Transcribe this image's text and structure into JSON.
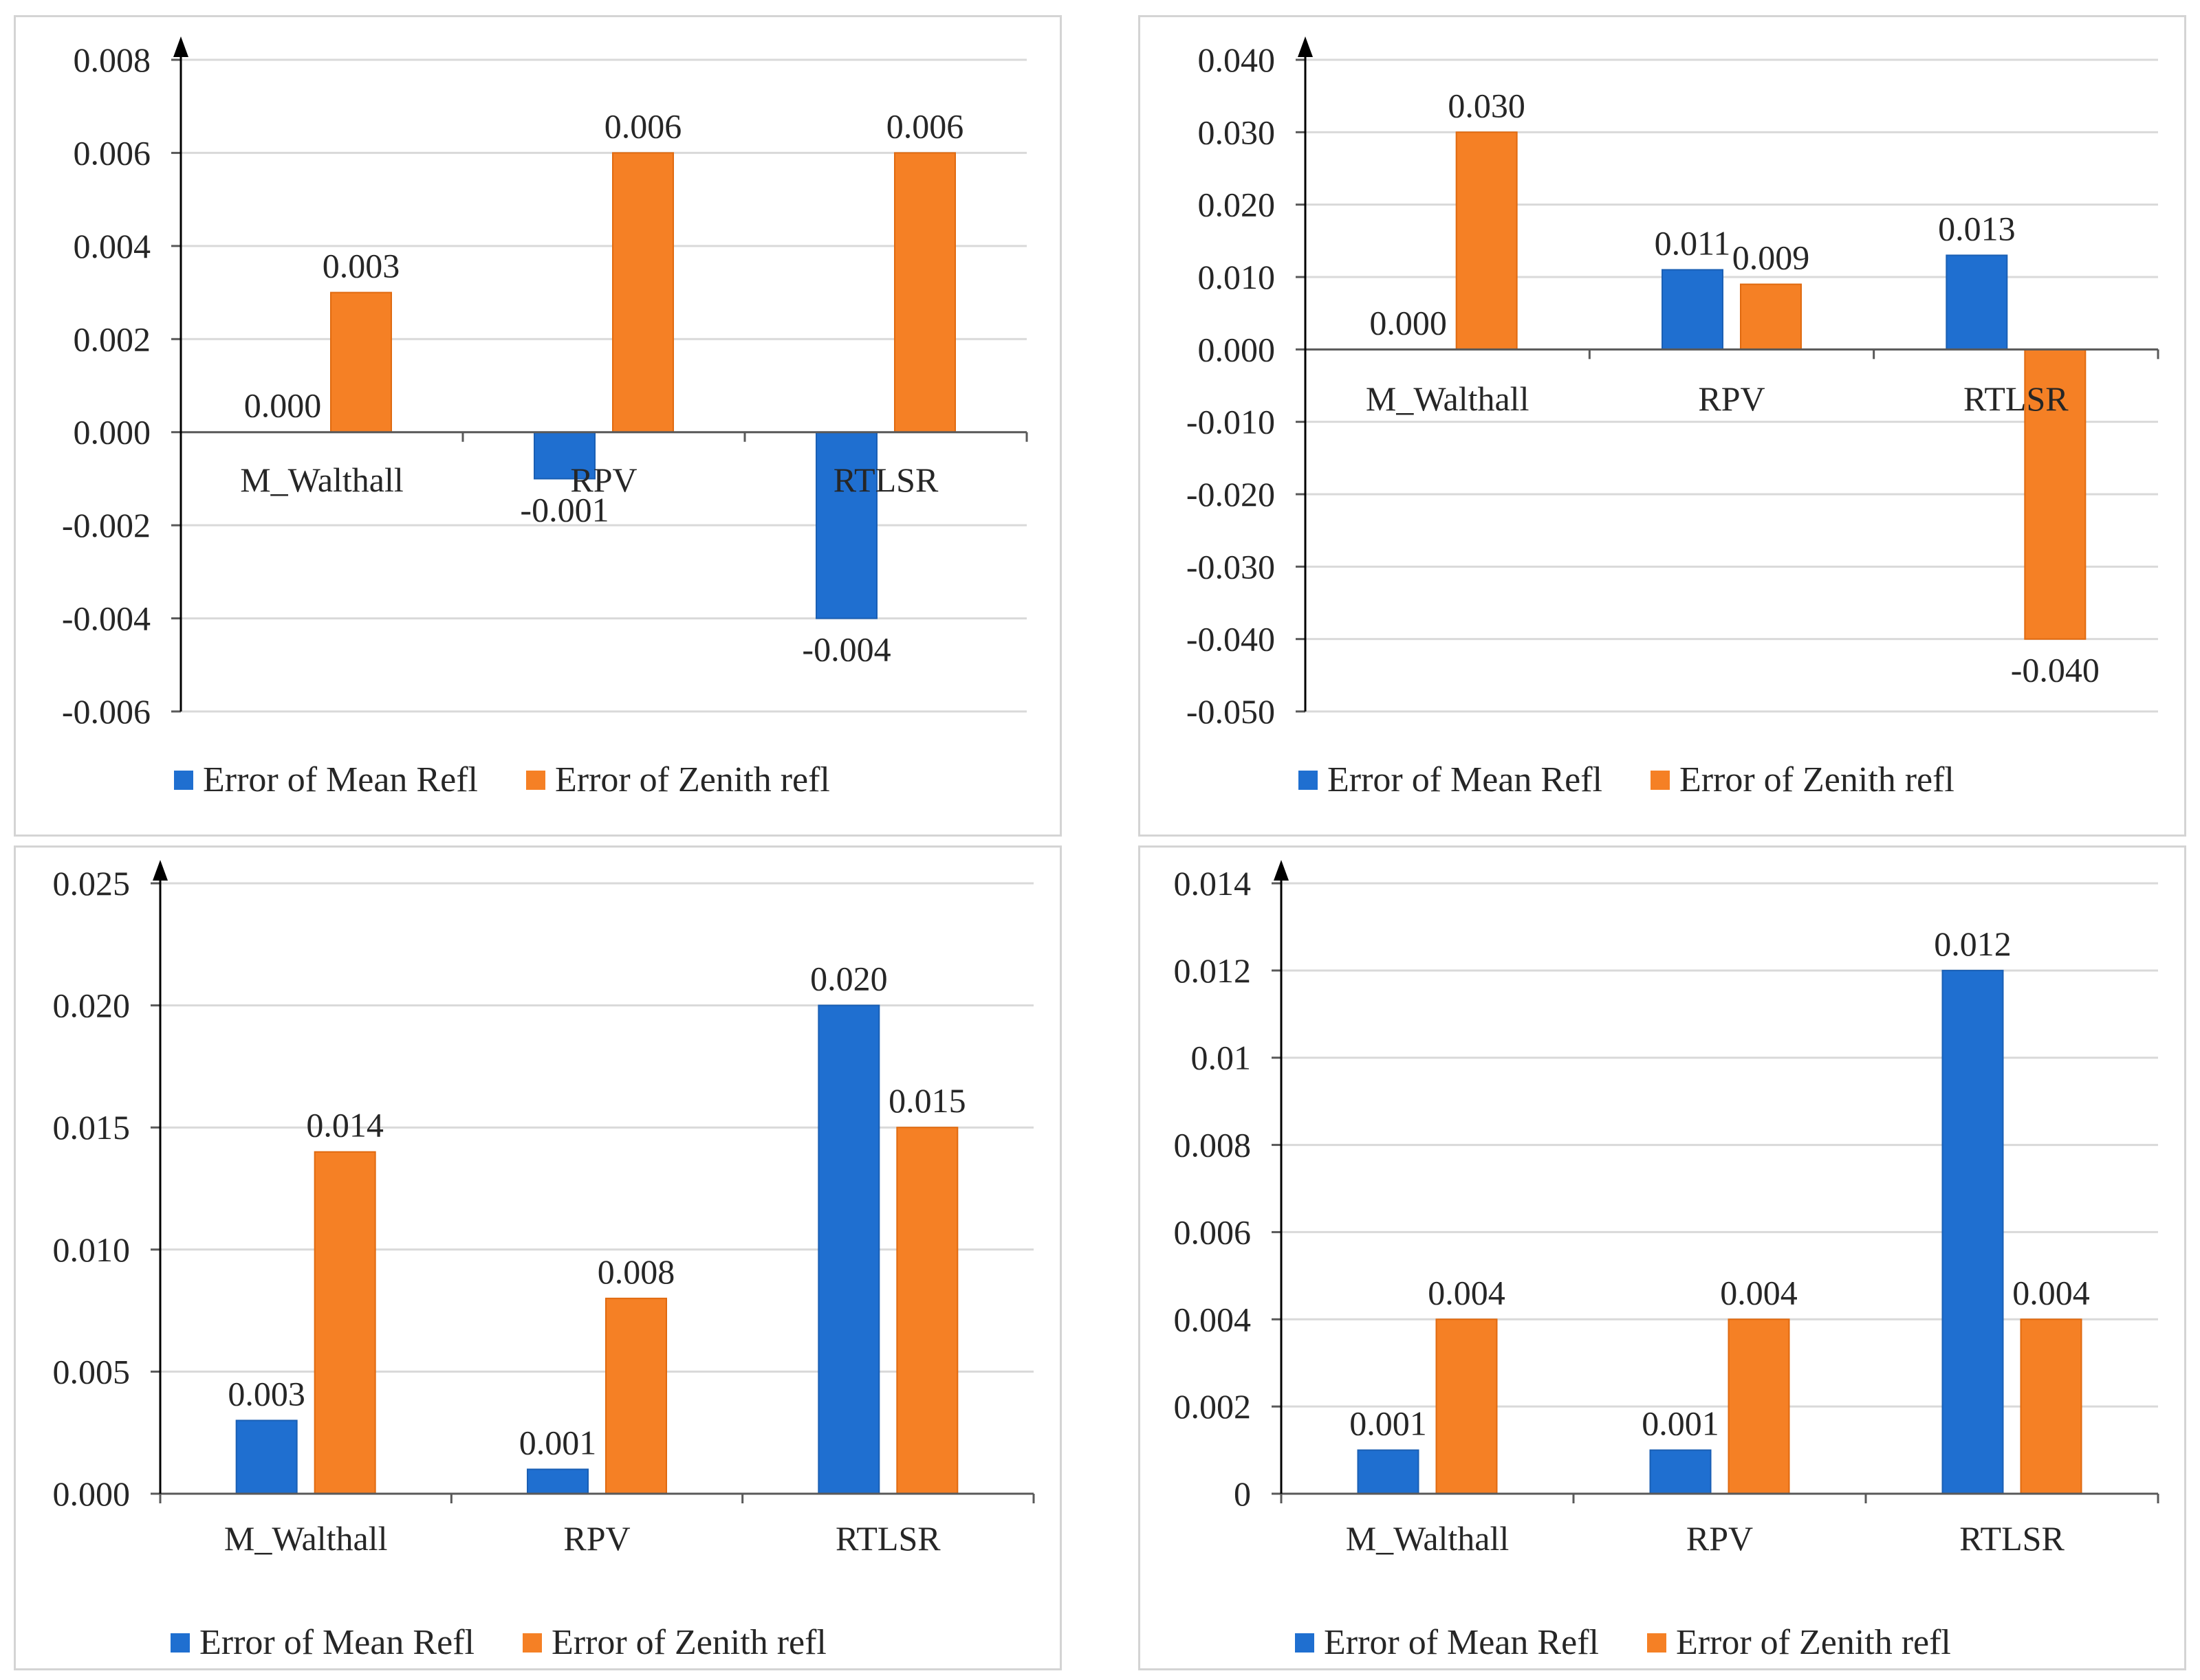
{
  "colors": {
    "mean": "#1f6fd0",
    "mean_stroke": "#1a5fb4",
    "zenith": "#f58025",
    "zenith_stroke": "#e06a10",
    "grid": "#d9d9d9",
    "axis": "#595959",
    "text": "#262626"
  },
  "legend": {
    "mean": "Error of Mean Refl",
    "zenith": "Error of Zenith refl"
  },
  "chart_data": [
    {
      "type": "bar",
      "categories": [
        "M_Walthall",
        "RPV",
        "RTLSR"
      ],
      "series": [
        {
          "name": "Error of Mean Refl",
          "values": [
            0.0,
            -0.001,
            -0.004
          ],
          "labels": [
            "0.000",
            "-0.001",
            "-0.004"
          ]
        },
        {
          "name": "Error of Zenith refl",
          "values": [
            0.003,
            0.006,
            0.006
          ],
          "labels": [
            "0.003",
            "0.006",
            "0.006"
          ]
        }
      ],
      "ylim": [
        -0.006,
        0.008
      ],
      "yticks": [
        -0.006,
        -0.004,
        -0.002,
        0.0,
        0.002,
        0.004,
        0.006,
        0.008
      ],
      "ytick_labels": [
        "-0.006",
        "-0.004",
        "-0.002",
        "0.000",
        "0.002",
        "0.004",
        "0.006",
        "0.008"
      ],
      "grid": true,
      "legend": "bottom-left"
    },
    {
      "type": "bar",
      "categories": [
        "M_Walthall",
        "RPV",
        "RTLSR"
      ],
      "series": [
        {
          "name": "Error of Mean Refl",
          "values": [
            0.0,
            0.011,
            0.013
          ],
          "labels": [
            "0.000",
            "0.011",
            "0.013"
          ]
        },
        {
          "name": "Error of Zenith refl",
          "values": [
            0.03,
            0.009,
            -0.04
          ],
          "labels": [
            "0.030",
            "0.009",
            "-0.040"
          ]
        }
      ],
      "ylim": [
        -0.05,
        0.04
      ],
      "yticks": [
        -0.05,
        -0.04,
        -0.03,
        -0.02,
        -0.01,
        0.0,
        0.01,
        0.02,
        0.03,
        0.04
      ],
      "ytick_labels": [
        "-0.050",
        "-0.040",
        "-0.030",
        "-0.020",
        "-0.010",
        "0.000",
        "0.010",
        "0.020",
        "0.030",
        "0.040"
      ],
      "grid": true,
      "legend": "bottom-left"
    },
    {
      "type": "bar",
      "categories": [
        "M_Walthall",
        "RPV",
        "RTLSR"
      ],
      "series": [
        {
          "name": "Error of Mean Refl",
          "values": [
            0.003,
            0.001,
            0.02
          ],
          "labels": [
            "0.003",
            "0.001",
            "0.020"
          ]
        },
        {
          "name": "Error of Zenith refl",
          "values": [
            0.014,
            0.008,
            0.015
          ],
          "labels": [
            "0.014",
            "0.008",
            "0.015"
          ]
        }
      ],
      "ylim": [
        0.0,
        0.025
      ],
      "yticks": [
        0.0,
        0.005,
        0.01,
        0.015,
        0.02,
        0.025
      ],
      "ytick_labels": [
        "0.000",
        "0.005",
        "0.010",
        "0.015",
        "0.020",
        "0.025"
      ],
      "grid": true,
      "legend": "bottom-left"
    },
    {
      "type": "bar",
      "categories": [
        "M_Walthall",
        "RPV",
        "RTLSR"
      ],
      "series": [
        {
          "name": "Error of Mean Refl",
          "values": [
            0.001,
            0.001,
            0.012
          ],
          "labels": [
            "0.001",
            "0.001",
            "0.012"
          ]
        },
        {
          "name": "Error of Zenith refl",
          "values": [
            0.004,
            0.004,
            0.004
          ],
          "labels": [
            "0.004",
            "0.004",
            "0.004"
          ]
        }
      ],
      "ylim": [
        0,
        0.014
      ],
      "yticks": [
        0,
        0.002,
        0.004,
        0.006,
        0.008,
        0.01,
        0.012,
        0.014
      ],
      "ytick_labels": [
        "0",
        "0.002",
        "0.004",
        "0.006",
        "0.008",
        "0.01",
        "0.012",
        "0.014"
      ],
      "grid": true,
      "legend": "bottom-left"
    }
  ]
}
